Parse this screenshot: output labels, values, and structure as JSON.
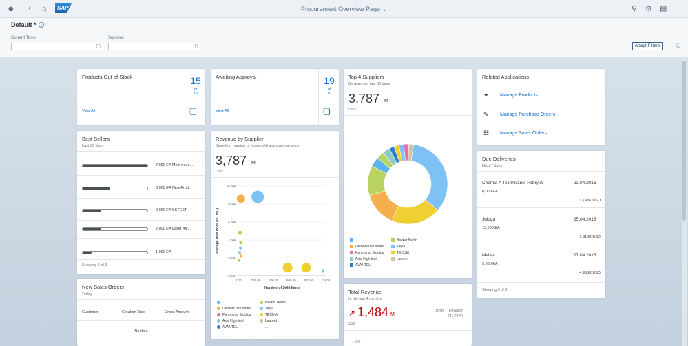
{
  "shell": {
    "title": "Procurement Overview Page",
    "logo_text": "SAP",
    "icons": [
      "user-icon",
      "back-icon",
      "home-icon",
      "search-icon",
      "settings-icon",
      "notifications-icon"
    ]
  },
  "filter_bar": {
    "variant": "Default *",
    "filters": [
      {
        "label": "Current Time:",
        "value": ""
      },
      {
        "label": "Supplier:",
        "value": ""
      }
    ],
    "adapt_button": "Adapt Filters"
  },
  "cards": {
    "out_of_stock": {
      "title": "Products Out of Stock",
      "count": "15",
      "of": "of",
      "total": "15",
      "link": "View All"
    },
    "awaiting_approval": {
      "title": "Awaiting Approval",
      "count": "19",
      "of": "of",
      "total": "19",
      "link": "View All"
    },
    "best_sellers": {
      "title": "Best Sellers",
      "subtitle": "Last 30 days",
      "items": [
        {
          "label": "7,000 EA",
          "name": "Mein neue...",
          "fraction": 1.0
        },
        {
          "label": "3,000 EA",
          "name": "New Prod...",
          "fraction": 0.43
        },
        {
          "label": "2,000 EA",
          "name": "SKTEST",
          "fraction": 0.29
        },
        {
          "label": "2,000 EA",
          "name": "Laser Allr...",
          "fraction": 0.29
        },
        {
          "label": "1,000 EA",
          "name": "",
          "fraction": 0.14
        }
      ],
      "footer": "Showing 5 of 9"
    },
    "new_sales_orders": {
      "title": "New Sales Orders",
      "subtitle": "Today",
      "columns": [
        "Customer",
        "Creation Date",
        "Gross Amount"
      ],
      "empty": "No data"
    },
    "revenue_by_supplier": {
      "title": "Revenue by Supplier",
      "subtitle": "Based on number of items sold and average price",
      "kpi": "3,787",
      "kpi_unit": "M",
      "currency": "USD"
    },
    "top_suppliers": {
      "title": "Top 4 Suppliers",
      "subtitle": "By revenue, last 30 days",
      "kpi": "3,787",
      "kpi_unit": "M",
      "currency": "USD"
    },
    "total_revenue": {
      "title": "Total Revenue",
      "subtitle": "In the last 4 months",
      "kpi": "1,484",
      "kpi_unit": "M",
      "currency": "USD",
      "target_label": "Target",
      "deviation_label": "Deviation",
      "deviation_value": "741,784%",
      "axis_label": "1,484"
    },
    "related_apps": {
      "title": "Related Applications",
      "items": [
        {
          "label": "Manage Products",
          "icon": "product-icon"
        },
        {
          "label": "Manage Purchase Orders",
          "icon": "purchase-order-icon"
        },
        {
          "label": "Manage Sales Orders",
          "icon": "sales-order-icon"
        }
      ]
    },
    "due_deliveries": {
      "title": "Due Deliveries",
      "subtitle": "Next 7 days",
      "items": [
        {
          "name": "Chemia A Technicznie Fabryka",
          "date": "23.04.2016",
          "qty": "8,000 EA",
          "amount": "1,795K USD"
        },
        {
          "name": "Jologa",
          "date": "25.04.2016",
          "qty": "15,000 EA",
          "amount": "7,310K USD"
        },
        {
          "name": "Meliva",
          "date": "27.04.2016",
          "qty": "9,000 EA",
          "amount": "4,955K USD"
        }
      ],
      "footer": "Showing 3 of 3"
    }
  },
  "chart_data": [
    {
      "type": "scatter",
      "title": "",
      "xlabel": "Number of Sold Items",
      "ylabel": "Average Item Price (in USD)",
      "x_ticks": [
        "0,00",
        "200,00",
        "400,00",
        "600,00",
        "800,00",
        "1,00K"
      ],
      "y_ticks": [
        "0,00K",
        "2,00K",
        "4,00K",
        "6,00K",
        "8,00K",
        "10,00K"
      ],
      "xlim": [
        0,
        1000
      ],
      "ylim": [
        0,
        10000
      ],
      "points": [
        {
          "x": 30,
          "y": 8600,
          "size": 6,
          "color": "#f5b04d"
        },
        {
          "x": 220,
          "y": 8800,
          "size": 9,
          "color": "#7ec1f5"
        },
        {
          "x": 20,
          "y": 4800,
          "size": 3,
          "color": "#b8d35f"
        },
        {
          "x": 30,
          "y": 3700,
          "size": 2.5,
          "color": "#b8d35f"
        },
        {
          "x": 25,
          "y": 3100,
          "size": 2,
          "color": "#7ec1f5"
        },
        {
          "x": 15,
          "y": 2600,
          "size": 2,
          "color": "#7ec1f5"
        },
        {
          "x": 30,
          "y": 2200,
          "size": 2,
          "color": "#f5b04d"
        },
        {
          "x": 10,
          "y": 1700,
          "size": 2,
          "color": "#b8d35f"
        },
        {
          "x": 560,
          "y": 900,
          "size": 7,
          "color": "#f0cf32"
        },
        {
          "x": 770,
          "y": 900,
          "size": 7,
          "color": "#f0cf32"
        },
        {
          "x": 960,
          "y": 500,
          "size": 2,
          "color": "#7ec1f5"
        }
      ],
      "legend": [
        {
          "name": "",
          "color": "#5cb3f0"
        },
        {
          "name": "Becker Berlin",
          "color": "#b8d35f"
        },
        {
          "name": "DelBont Industries",
          "color": "#f5b04d"
        },
        {
          "name": "Talpa",
          "color": "#7ec1f5"
        },
        {
          "name": "Panorama Studios",
          "color": "#e86bb5"
        },
        {
          "name": "TECUM",
          "color": "#f0cf32"
        },
        {
          "name": "Asia High tech",
          "color": "#8fc9c9"
        },
        {
          "name": "Laurent",
          "color": "#d4c5a0"
        },
        {
          "name": "AVANTEL",
          "color": "#2b7fcf"
        },
        {
          "name": "...",
          "color": "#ffffff"
        }
      ]
    },
    {
      "type": "pie",
      "title": "",
      "slices": [
        {
          "value": 34,
          "color": "#7ec1f5"
        },
        {
          "value": 20,
          "color": "#f0cf32"
        },
        {
          "value": 14,
          "color": "#f5b04d"
        },
        {
          "value": 12,
          "color": "#b8d35f"
        },
        {
          "value": 4,
          "color": "#5cb3f0"
        },
        {
          "value": 3,
          "color": "#b8d35f"
        },
        {
          "value": 3,
          "color": "#8fc9c9"
        },
        {
          "value": 2,
          "color": "#2b7fcf"
        },
        {
          "value": 2,
          "color": "#f0cf32"
        },
        {
          "value": 2,
          "color": "#7ec1f5"
        },
        {
          "value": 2,
          "color": "#e86bb5"
        },
        {
          "value": 2,
          "color": "#d4c5a0"
        }
      ],
      "legend": [
        {
          "name": "",
          "color": "#5cb3f0"
        },
        {
          "name": "Becker Berlin",
          "color": "#b8d35f"
        },
        {
          "name": "DelBont Industries",
          "color": "#f5b04d"
        },
        {
          "name": "Talpa",
          "color": "#7ec1f5"
        },
        {
          "name": "Panorama Studios",
          "color": "#e86bb5"
        },
        {
          "name": "TECUM",
          "color": "#f0cf32"
        },
        {
          "name": "Asia High tech",
          "color": "#8fc9c9"
        },
        {
          "name": "Laurent",
          "color": "#d4c5a0"
        },
        {
          "name": "AVANTEL",
          "color": "#2b7fcf"
        }
      ]
    }
  ]
}
